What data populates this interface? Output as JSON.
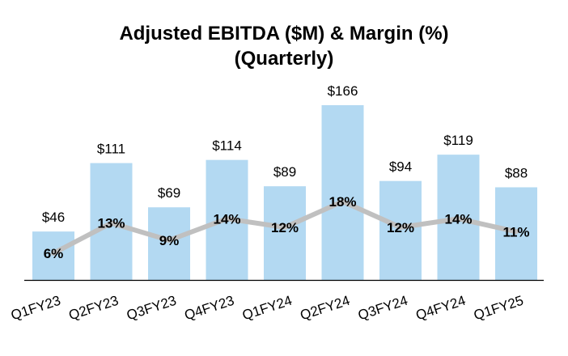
{
  "chart_data": {
    "type": "bar",
    "title": "Adjusted EBITDA ($M) & Margin (%)",
    "subtitle": "(Quarterly)",
    "categories": [
      "Q1FY23",
      "Q2FY23",
      "Q3FY23",
      "Q4FY23",
      "Q1FY24",
      "Q2FY24",
      "Q3FY24",
      "Q4FY24",
      "Q1FY25"
    ],
    "series": [
      {
        "name": "Adjusted EBITDA ($M)",
        "type": "bar",
        "color": "#b3d9f2",
        "values": [
          46,
          111,
          69,
          114,
          89,
          166,
          94,
          119,
          88
        ],
        "labels": [
          "$46",
          "$111",
          "$69",
          "$114",
          "$89",
          "$166",
          "$94",
          "$119",
          "$88"
        ]
      },
      {
        "name": "Margin (%)",
        "type": "line",
        "color": "#c0c0c0",
        "values": [
          6,
          13,
          9,
          14,
          12,
          18,
          12,
          14,
          11
        ],
        "labels": [
          "6%",
          "13%",
          "9%",
          "14%",
          "12%",
          "18%",
          "12%",
          "14%",
          "11%"
        ]
      }
    ],
    "ylim": [
      0,
      166
    ],
    "xlabel": "",
    "ylabel": "",
    "grid": false
  }
}
